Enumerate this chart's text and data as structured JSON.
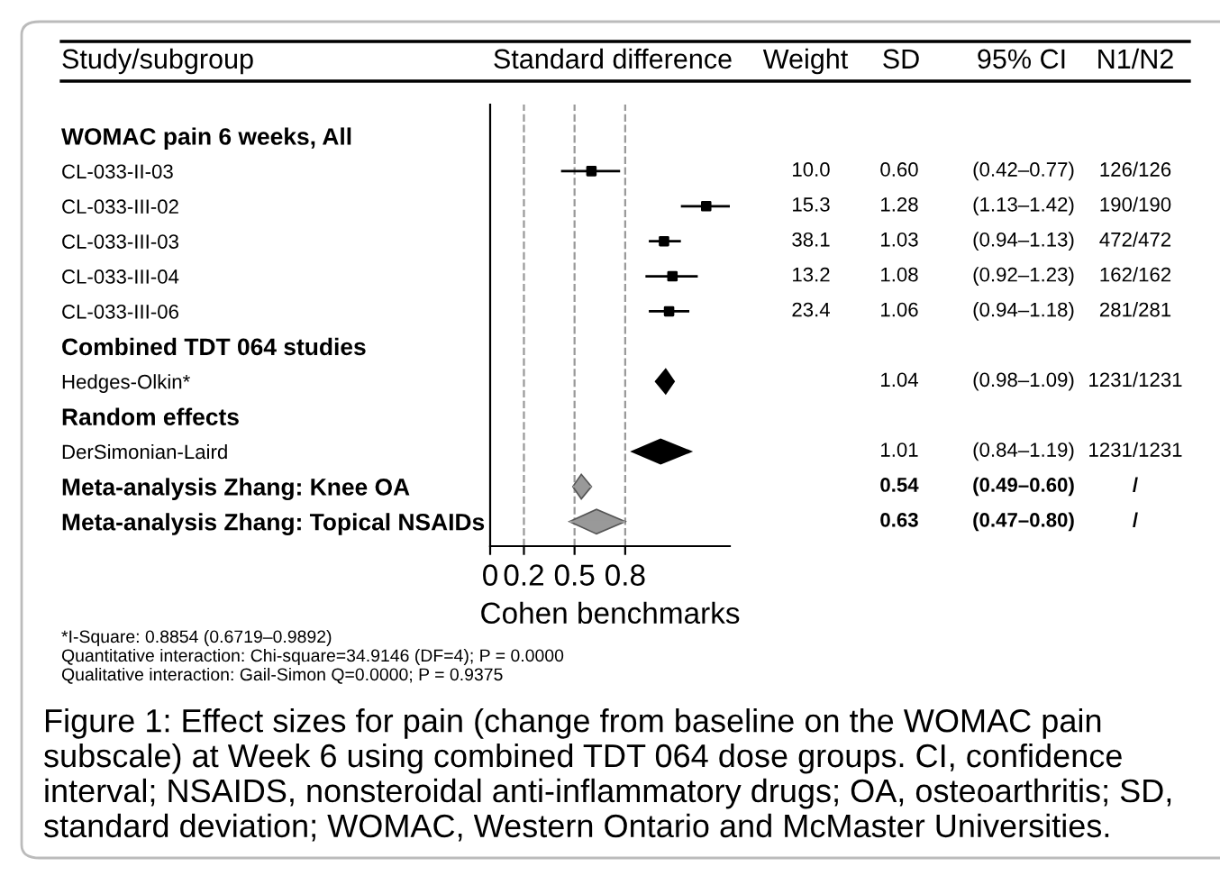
{
  "chart_data": {
    "type": "scatter",
    "orientation": "horizontal",
    "xlabel": "Cohen benchmarks",
    "categories": [
      "WOMAC pain 6 weeks, All",
      "CL-033-II-03",
      "CL-033-III-02",
      "CL-033-III-03",
      "CL-033-III-04",
      "CL-033-III-06",
      "Combined TDT 064 studies",
      "Hedges-Olkin*",
      "Random effects",
      "DerSimonian-Laird",
      "Meta-analysis Zhang: Knee OA",
      "Meta-analysis Zhang: Topical NSAIDs"
    ],
    "series": [
      {
        "color": "#000000",
        "marker": "square",
        "values": [
          null,
          0.6,
          1.28,
          1.03,
          1.08,
          1.06,
          null,
          null,
          null,
          null,
          null,
          null
        ],
        "errors": [
          null,
          [
            0.42,
            0.77
          ],
          [
            1.13,
            1.42
          ],
          [
            0.94,
            1.13
          ],
          [
            0.92,
            1.23
          ],
          [
            0.94,
            1.18
          ],
          null,
          null,
          null,
          null,
          null,
          null
        ]
      },
      {
        "color": "#000000",
        "marker": "diamond",
        "values": [
          null,
          null,
          null,
          null,
          null,
          null,
          null,
          1.04,
          null,
          1.01,
          null,
          null
        ],
        "errors": [
          null,
          null,
          null,
          null,
          null,
          null,
          null,
          [
            0.98,
            1.09
          ],
          null,
          [
            0.84,
            1.19
          ],
          null,
          null
        ]
      },
      {
        "color": "#999999",
        "marker": "diamond",
        "values": [
          null,
          null,
          null,
          null,
          null,
          null,
          null,
          null,
          null,
          null,
          0.54,
          0.63
        ],
        "errors": [
          null,
          null,
          null,
          null,
          null,
          null,
          null,
          null,
          null,
          null,
          [
            0.49,
            0.6
          ],
          [
            0.47,
            0.8
          ]
        ]
      }
    ],
    "xlim": [
      0,
      1.42
    ],
    "xticks": [
      0,
      0.2,
      0.5,
      0.8
    ],
    "ref_lines": [
      {
        "axis": "x",
        "value": 0.2,
        "label": null,
        "color": "#999999",
        "line_style": "dashed"
      },
      {
        "axis": "x",
        "value": 0.5,
        "label": null,
        "color": "#999999",
        "line_style": "dashed"
      },
      {
        "axis": "x",
        "value": 0.8,
        "label": null,
        "color": "#999999",
        "line_style": "dashed"
      }
    ],
    "grid": false,
    "legend": false,
    "annotations": [
      "Study/subgroup",
      "Standard difference",
      "Weight",
      "SD",
      "95% CI",
      "N1/N2",
      "10.0",
      "0.60",
      "(0.42–0.77)",
      "126/126",
      "15.3",
      "1.28",
      "(1.13–1.42)",
      "190/190",
      "38.1",
      "1.03",
      "(0.94–1.13)",
      "472/472",
      "13.2",
      "1.08",
      "(0.92–1.23)",
      "162/162",
      "23.4",
      "1.06",
      "(0.94–1.18)",
      "281/281",
      "1.04",
      "(0.98–1.09)",
      "1231/1231",
      "1.01",
      "(0.84–1.19)",
      "1231/1231",
      "0.54",
      "(0.49–0.60)",
      "/",
      "0.63",
      "(0.47–0.80)",
      "/",
      "*I-Square: 0.8854 (0.6719–0.9892)",
      "Quantitative interaction: Chi-square=34.9146 (DF=4); P = 0.0000",
      "Qualitative interaction: Gail-Simon Q=0.0000; P = 0.9375",
      "Figure 1: Effect sizes for pain (change from baseline on the WOMAC pain subscale) at Week 6 using combined TDT 064 dose groups. CI, confidence interval; NSAIDS, nonsteroidal anti-inflammatory drugs; OA, osteoarthritis; SD, standard deviation; WOMAC, Western Ontario and McMaster Universities."
    ]
  }
}
